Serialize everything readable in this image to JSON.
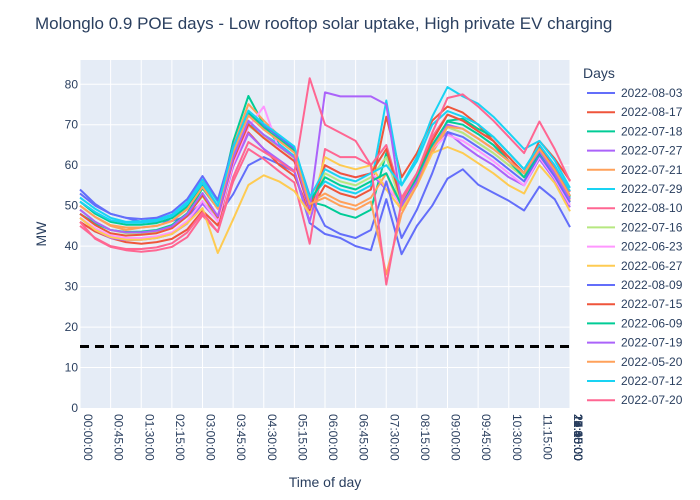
{
  "chart_data": {
    "type": "line",
    "title": "Molonglo 0.9 POE days - Low rooftop solar uptake, High private EV charging",
    "xlabel": "Time of day",
    "ylabel": "MW",
    "ylim": [
      0,
      86
    ],
    "yticks": [
      0,
      10,
      20,
      30,
      40,
      50,
      60,
      70,
      80
    ],
    "xtick_labels": [
      "00:00:00",
      "00:45:00",
      "01:30:00",
      "02:15:00",
      "03:00:00",
      "03:45:00",
      "04:30:00",
      "05:15:00",
      "06:00:00",
      "06:45:00",
      "07:30:00",
      "08:15:00",
      "09:00:00",
      "09:45:00",
      "10:30:00",
      "11:15:00",
      "12:00:00",
      "12:45:00",
      "13:30:00",
      "14:15:00",
      "15:00:00",
      "15:45:00",
      "16:30:00",
      "17:15:00",
      "18:00:00",
      "18:45:00",
      "19:30:00",
      "20:15:00",
      "21:00:00",
      "21:45:00",
      "22:30:00",
      "23:15:00"
    ],
    "grid": true,
    "legend_title": "Days",
    "legend_position": "right",
    "reference_line": {
      "value": 15.2,
      "style": "dashed",
      "color": "#000000"
    },
    "series": [
      {
        "name": "2022-08-03",
        "color": "#636efa",
        "values": [
          54,
          50.4,
          48,
          47,
          46,
          46,
          46.2,
          47.4,
          50.8,
          47.4,
          52.8,
          60,
          62,
          60.3,
          58.4,
          45.7,
          43,
          42,
          40,
          39,
          51.6,
          38,
          45,
          50,
          56.7,
          59,
          55.2,
          53.2,
          51.2,
          48.8,
          54.7,
          51.6,
          44.7
        ]
      },
      {
        "name": "2022-08-17",
        "color": "#EF553B",
        "values": [
          46,
          43.6,
          42,
          41,
          40.6,
          41,
          41.8,
          44.1,
          48.7,
          45.1,
          60.3,
          68.1,
          64,
          60.1,
          57.3,
          48.5,
          55,
          53,
          52,
          54,
          72,
          57,
          63,
          71,
          74.5,
          73,
          70,
          66,
          61,
          58,
          66,
          61.6,
          56.2
        ]
      },
      {
        "name": "2022-07-18",
        "color": "#00cc96",
        "values": [
          48,
          45.6,
          44,
          43.5,
          43.6,
          44,
          45.2,
          48.1,
          54.3,
          49.3,
          65.8,
          77.1,
          70,
          65.2,
          62.2,
          51,
          50,
          48,
          47,
          49,
          63,
          49.5,
          55,
          64,
          71,
          71.5,
          69,
          67,
          63,
          59,
          65,
          59.8,
          52.4
        ]
      },
      {
        "name": "2022-07-27",
        "color": "#ab63fa",
        "values": [
          47,
          44,
          42,
          41.5,
          41.6,
          42,
          43,
          45.6,
          50.5,
          46.3,
          59.6,
          67.8,
          64,
          61.3,
          58.6,
          46.1,
          60,
          58,
          57,
          58,
          54,
          51,
          57,
          65,
          68.1,
          65,
          62.3,
          60,
          57,
          55,
          61.5,
          56.4,
          49.6
        ]
      },
      {
        "name": "2022-07-21",
        "color": "#FFA15A",
        "values": [
          50,
          47.2,
          45,
          44,
          44.6,
          45,
          46.2,
          49.4,
          55.9,
          49.6,
          64.6,
          75.1,
          71,
          67.3,
          63.8,
          50.7,
          53,
          51,
          50,
          52,
          58,
          49,
          55,
          63,
          69.4,
          68,
          65.5,
          63,
          60,
          57,
          63,
          57.6,
          51.2
        ]
      },
      {
        "name": "2022-07-29",
        "color": "#19d3f3",
        "values": [
          52,
          49.2,
          47,
          46,
          46.2,
          46.6,
          47.8,
          50.9,
          56.5,
          50.9,
          62.3,
          70.6,
          67.5,
          65.2,
          62.2,
          51.8,
          56,
          54,
          53,
          55,
          76,
          55,
          62,
          72,
          79.3,
          77,
          75.2,
          72,
          68,
          64,
          66,
          61.2,
          54.4
        ]
      },
      {
        "name": "2022-08-10",
        "color": "#FF6692",
        "values": [
          46,
          41.8,
          39.8,
          39,
          38.6,
          39,
          39.8,
          42.2,
          47.6,
          43.5,
          55.9,
          64,
          61.5,
          58.5,
          55.7,
          40.6,
          64,
          62,
          62,
          60,
          65,
          52,
          58,
          67,
          72.5,
          71,
          68.4,
          66,
          62,
          58,
          64,
          59.8,
          53.4
        ]
      },
      {
        "name": "2022-07-16",
        "color": "#B6E880",
        "values": [
          49,
          46,
          44,
          43.2,
          43.2,
          43.6,
          44.6,
          47.7,
          52.3,
          46.9,
          60.7,
          69.8,
          66.8,
          64.6,
          61.7,
          49.8,
          58,
          56,
          55,
          57,
          62,
          50,
          56,
          64,
          69.4,
          68,
          65.5,
          63,
          60,
          57,
          63.5,
          57.8,
          51
        ]
      },
      {
        "name": "2022-06-23",
        "color": "#FF97FF",
        "values": [
          47,
          44.4,
          42.6,
          42,
          42,
          42.4,
          43.4,
          46.2,
          51.2,
          46.1,
          60.3,
          69.4,
          74.5,
          63.8,
          60.9,
          48.6,
          60,
          58,
          57,
          58,
          55,
          50,
          56,
          64,
          67.5,
          66,
          63.6,
          61,
          58,
          55,
          62,
          56.8,
          50.2
        ]
      },
      {
        "name": "2022-06-27",
        "color": "#FECB52",
        "values": [
          47,
          44,
          42.2,
          41.6,
          41.6,
          42,
          43,
          45.7,
          49.4,
          38.3,
          46.6,
          55.1,
          57.5,
          56,
          53.6,
          48,
          62,
          60,
          59,
          60,
          54,
          49,
          55,
          63,
          64.5,
          63,
          60.5,
          58,
          55,
          53,
          60,
          55.6,
          48.6
        ]
      },
      {
        "name": "2022-08-09",
        "color": "#636efa",
        "values": [
          53,
          50,
          48,
          47,
          46.7,
          47,
          48.4,
          51.6,
          57.3,
          51.4,
          64.6,
          72.6,
          69.9,
          67,
          64.1,
          52.5,
          45,
          43,
          42,
          44,
          56,
          42,
          49,
          58,
          68.2,
          67,
          64.5,
          62,
          59,
          56,
          62.5,
          57.2,
          50.8
        ]
      },
      {
        "name": "2022-07-15",
        "color": "#EF553B",
        "values": [
          48,
          45.2,
          43.2,
          42.6,
          42.8,
          43.2,
          44.4,
          47.4,
          52.6,
          47.1,
          61.2,
          70.1,
          66.7,
          63.8,
          61,
          48.9,
          60,
          58,
          57,
          58,
          64,
          51,
          57,
          66,
          72.5,
          71,
          68.4,
          66,
          62,
          58,
          64.5,
          58.9,
          52.4
        ]
      },
      {
        "name": "2022-06-09",
        "color": "#00cc96",
        "values": [
          51,
          48,
          46,
          45.3,
          45.3,
          45.7,
          46.9,
          49.8,
          55.3,
          49.7,
          63.7,
          73.1,
          69.2,
          66.4,
          63.5,
          50.9,
          57,
          55,
          54,
          56,
          58,
          50,
          57,
          65,
          70.8,
          70,
          67.7,
          65,
          61,
          57,
          63,
          58.4,
          52
        ]
      },
      {
        "name": "2022-07-19",
        "color": "#ab63fa",
        "values": [
          49,
          46,
          44,
          43.4,
          43.4,
          43.8,
          44.9,
          47.9,
          53.1,
          47.4,
          61.8,
          71,
          67.5,
          64.7,
          61.9,
          49.4,
          78,
          77,
          77,
          77,
          75,
          50,
          56,
          64,
          70,
          69,
          66.6,
          64,
          61,
          58,
          63.5,
          58,
          51.6
        ]
      },
      {
        "name": "2022-05-20",
        "color": "#FFA15A",
        "values": [
          50,
          47.2,
          45.2,
          44.6,
          44.6,
          45,
          46.2,
          49.1,
          54.6,
          49.2,
          63.2,
          72.3,
          68.8,
          66,
          63.1,
          50.4,
          52,
          50,
          49,
          51,
          33,
          48,
          55,
          64,
          69.5,
          69,
          66.6,
          64,
          61,
          58,
          64,
          58.8,
          52.4
        ]
      },
      {
        "name": "2022-07-12",
        "color": "#19d3f3",
        "values": [
          51,
          48.4,
          46.4,
          45.8,
          45.8,
          46.2,
          47.4,
          50.4,
          55.6,
          49.9,
          64.3,
          73.5,
          70.2,
          67.5,
          64.6,
          52,
          59,
          57,
          56,
          58,
          60,
          55,
          61,
          70,
          73.4,
          72,
          70.1,
          67,
          63,
          59,
          65,
          60,
          53.6
        ]
      },
      {
        "name": "2022-07-20",
        "color": "#FF6692",
        "values": [
          45,
          42,
          40,
          39.3,
          39.3,
          39.7,
          40.7,
          43.4,
          48.3,
          43.5,
          57,
          65.7,
          63.3,
          61,
          58.3,
          81.5,
          70,
          68,
          66,
          60,
          30.5,
          51,
          58,
          68,
          76.6,
          77.5,
          74.5,
          71,
          67,
          63,
          70.8,
          64,
          56
        ]
      }
    ]
  }
}
